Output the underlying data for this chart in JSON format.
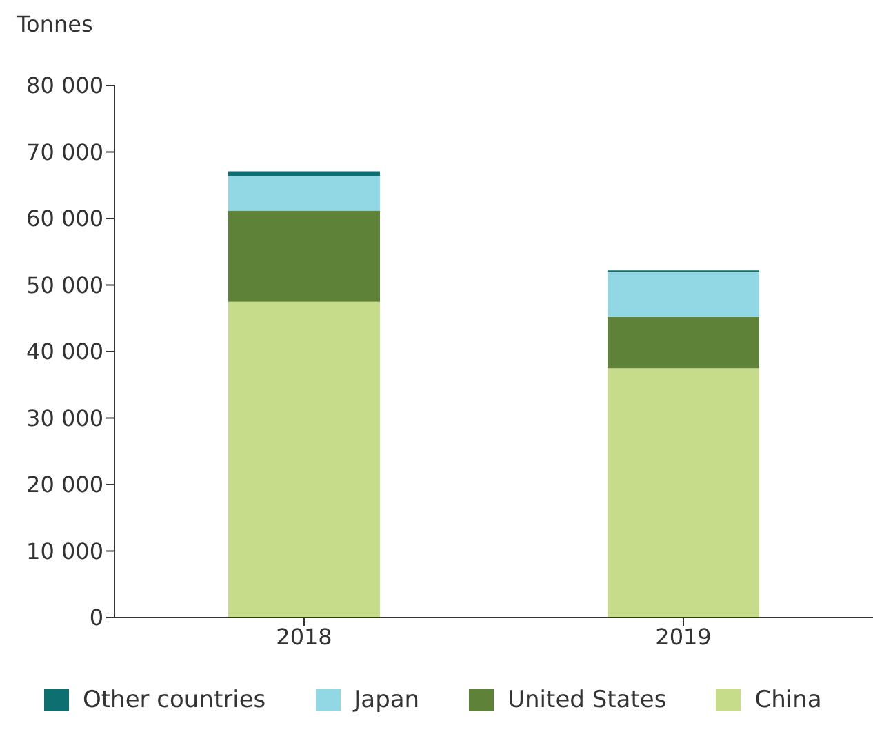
{
  "chart_data": {
    "type": "bar",
    "stacked": true,
    "ylabel": "Tonnes",
    "categories": [
      "2018",
      "2019"
    ],
    "series": [
      {
        "name": "China",
        "color": "#c6dc8a",
        "values": [
          47500,
          37500
        ]
      },
      {
        "name": "United States",
        "color": "#5e8237",
        "values": [
          13700,
          7700
        ]
      },
      {
        "name": "Japan",
        "color": "#92d8e4",
        "values": [
          5200,
          6800
        ]
      },
      {
        "name": "Other countries",
        "color": "#0e6f70",
        "values": [
          700,
          200
        ]
      }
    ],
    "ylim": [
      0,
      80000
    ],
    "yticks": [
      {
        "value": 0,
        "label": "0"
      },
      {
        "value": 10000,
        "label": "10 000"
      },
      {
        "value": 20000,
        "label": "20 000"
      },
      {
        "value": 30000,
        "label": "30 000"
      },
      {
        "value": 40000,
        "label": "40 000"
      },
      {
        "value": 50000,
        "label": "50 000"
      },
      {
        "value": 60000,
        "label": "60 000"
      },
      {
        "value": 70000,
        "label": "70 000"
      },
      {
        "value": 80000,
        "label": "80 000"
      }
    ],
    "grid": false,
    "legend": "bottom"
  }
}
